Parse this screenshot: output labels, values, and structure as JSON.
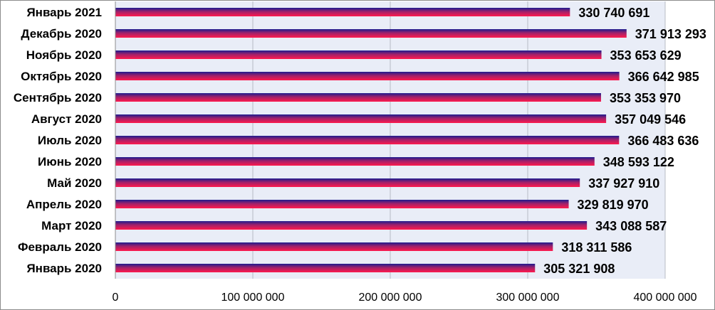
{
  "chart_data": {
    "type": "bar",
    "orientation": "horizontal",
    "categories": [
      "Январь 2021",
      "Декабрь 2020",
      "Ноябрь 2020",
      "Октябрь 2020",
      "Сентябрь 2020",
      "Август 2020",
      "Июль 2020",
      "Июнь 2020",
      "Май 2020",
      "Апрель 2020",
      "Март 2020",
      "Февраль 2020",
      "Январь 2020"
    ],
    "values": [
      330740691,
      371913293,
      353653629,
      366642985,
      353353970,
      357049546,
      366483636,
      348593122,
      337927910,
      329819970,
      343088587,
      318311586,
      305321908
    ],
    "value_labels": [
      "330 740 691",
      "371 913 293",
      "353 653 629",
      "366 642 985",
      "353 353 970",
      "357 049 546",
      "366 483 636",
      "348 593 122",
      "337 927 910",
      "329 819 970",
      "343 088 587",
      "318 311 586",
      "305 321 908"
    ],
    "xlim": [
      0,
      400000000
    ],
    "x_ticks": [
      0,
      100000000,
      200000000,
      300000000,
      400000000
    ],
    "x_tick_labels": [
      "0",
      "100 000 000",
      "200 000 000",
      "300 000 000",
      "400 000 000"
    ],
    "grid": true,
    "colors": {
      "plot_background": "#e9edf7",
      "gridline": "#b8bcc4",
      "bar_top": "#1c1c8f",
      "bar_mid": "#a0206a",
      "bar_bottom": "#ff1a4d"
    }
  }
}
